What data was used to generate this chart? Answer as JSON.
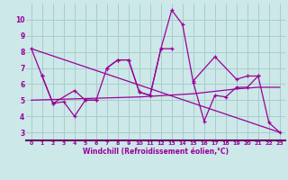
{
  "background_color": "#cce8e8",
  "grid_color": "#aacccc",
  "line_color": "#990099",
  "xlabel": "Windchill (Refroidissement éolien,°C)",
  "xlim": [
    -0.5,
    23.5
  ],
  "ylim": [
    2.5,
    11.0
  ],
  "xticks": [
    0,
    1,
    2,
    3,
    4,
    5,
    6,
    7,
    8,
    9,
    10,
    11,
    12,
    13,
    14,
    15,
    16,
    17,
    18,
    19,
    20,
    21,
    22,
    23
  ],
  "yticks": [
    3,
    4,
    5,
    6,
    7,
    8,
    9,
    10
  ],
  "line1": {
    "x": [
      0,
      1,
      2,
      3,
      4,
      5,
      6,
      7,
      8,
      9,
      10,
      11,
      12,
      13,
      14,
      15,
      16,
      17,
      18,
      19,
      20,
      21,
      22,
      23
    ],
    "y": [
      8.2,
      6.5,
      4.8,
      4.9,
      4.0,
      5.0,
      5.0,
      7.0,
      7.5,
      7.5,
      5.5,
      5.3,
      8.2,
      10.6,
      9.7,
      6.1,
      3.7,
      5.3,
      5.2,
      5.8,
      5.8,
      6.5,
      3.6,
      3.0
    ]
  },
  "line2_segments": [
    {
      "x": [
        1,
        2,
        4,
        5,
        6
      ],
      "y": [
        6.5,
        4.8,
        5.6,
        5.0,
        5.0
      ]
    },
    {
      "x": [
        7,
        8,
        9,
        10,
        11,
        12,
        13
      ],
      "y": [
        7.0,
        7.5,
        7.5,
        5.5,
        5.3,
        8.2,
        8.2
      ]
    },
    {
      "x": [
        15,
        17,
        19,
        20,
        21
      ],
      "y": [
        6.2,
        7.7,
        6.3,
        6.5,
        6.5
      ]
    }
  ],
  "line3": {
    "x": [
      0,
      23
    ],
    "y": [
      8.2,
      3.0
    ]
  },
  "line4": {
    "x": [
      0,
      10,
      15,
      19,
      21,
      23
    ],
    "y": [
      5.0,
      5.2,
      5.4,
      5.7,
      5.8,
      5.8
    ]
  }
}
